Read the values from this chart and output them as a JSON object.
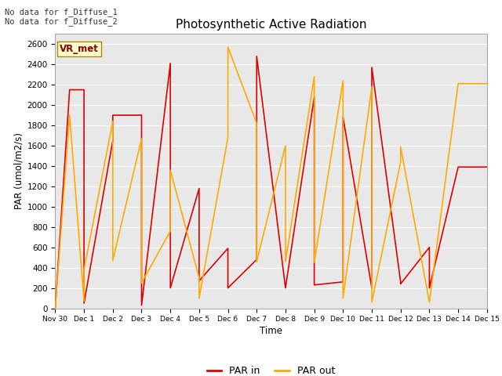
{
  "title": "Photosynthetic Active Radiation",
  "xlabel": "Time",
  "ylabel": "PAR (umol/m2/s)",
  "annotation_top": "No data for f_Diffuse_1\nNo data for f_Diffuse_2",
  "vr_met_label": "VR_met",
  "legend_labels": [
    "PAR in",
    "PAR out"
  ],
  "par_in_color": "#dd0000",
  "par_out_color": "#ffaa00",
  "ylim": [
    0,
    2700
  ],
  "yticks": [
    0,
    200,
    400,
    600,
    800,
    1000,
    1200,
    1400,
    1600,
    1800,
    2000,
    2200,
    2400,
    2600
  ],
  "x_tick_labels": [
    "Nov 30",
    "Dec 1",
    "Dec 2",
    "Dec 3",
    "Dec 4",
    "Dec 5",
    "Dec 6",
    "Dec 7",
    "Dec 8",
    "Dec 9",
    "Dec 10",
    "Dec 11",
    "Dec 12",
    "Dec 13",
    "Dec 14",
    "Dec 15"
  ],
  "par_in_x": [
    0,
    0.5,
    1,
    1,
    2,
    2,
    3,
    3,
    4,
    4,
    5,
    5,
    6,
    6,
    7,
    7,
    8,
    8,
    9,
    9,
    10,
    10,
    11,
    11,
    12,
    12,
    13,
    13,
    14,
    15
  ],
  "par_in_y": [
    0,
    2150,
    2150,
    50,
    1650,
    1900,
    1900,
    30,
    2410,
    200,
    1180,
    270,
    590,
    200,
    480,
    2480,
    200,
    200,
    2080,
    230,
    260,
    1880,
    200,
    2370,
    260,
    240,
    600,
    200,
    1390,
    1390
  ],
  "par_out_x": [
    0,
    0.5,
    1,
    1,
    2,
    2,
    3,
    3,
    4,
    4,
    5,
    5,
    6,
    6,
    7,
    7,
    8,
    8,
    9,
    9,
    10,
    10,
    11,
    11,
    12,
    12,
    13,
    14,
    15
  ],
  "par_out_y": [
    0,
    1900,
    70,
    380,
    1840,
    470,
    1670,
    250,
    760,
    1360,
    300,
    100,
    1680,
    2570,
    1820,
    460,
    1600,
    460,
    2280,
    450,
    2240,
    100,
    2180,
    60,
    1440,
    1590,
    60,
    2210,
    2210
  ],
  "background_color": "#e8e8e8",
  "grid_color": "#ffffff",
  "vr_met_box_color": "#ffffcc",
  "vr_met_box_edge": "#aa8800",
  "vr_met_text_color": "#880000"
}
